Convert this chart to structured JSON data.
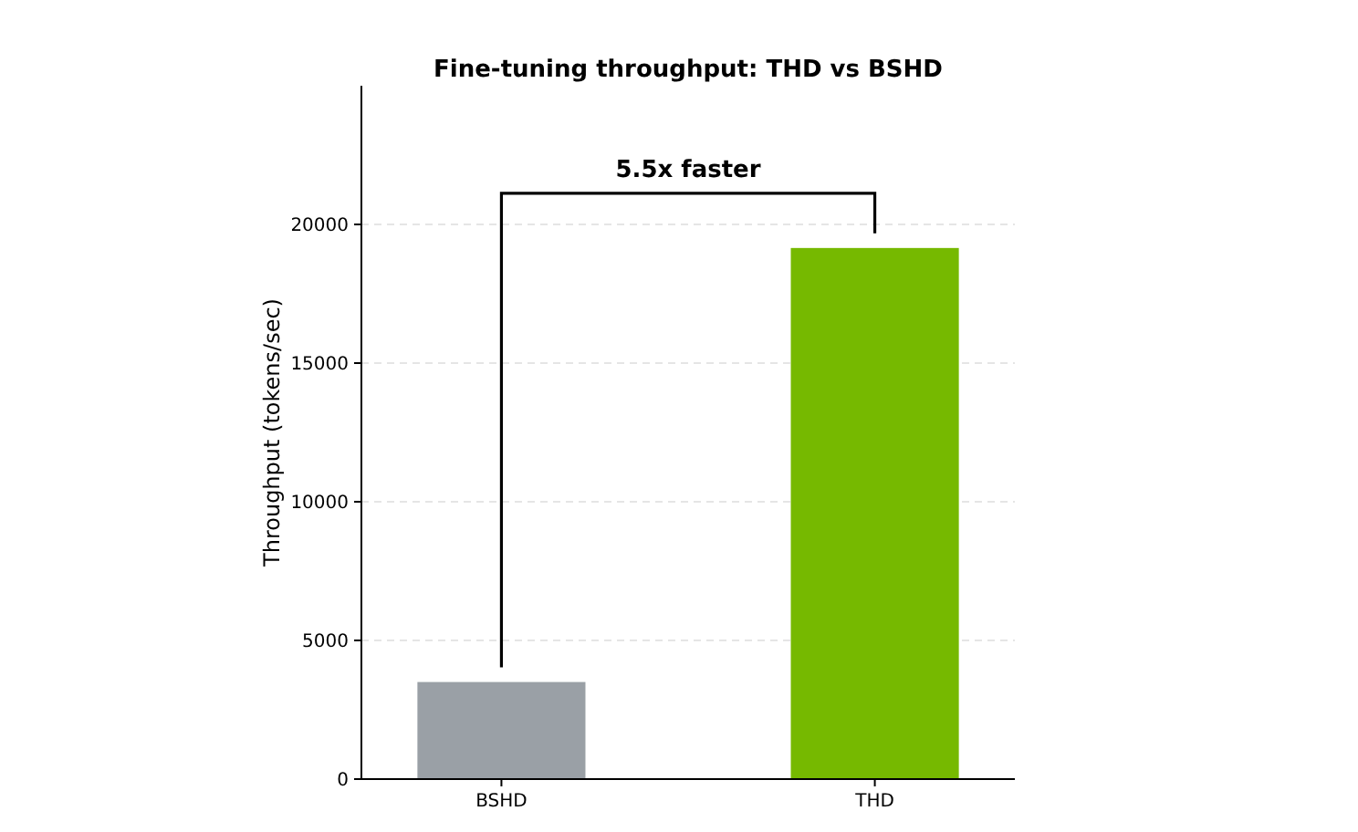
{
  "chart_data": {
    "type": "bar",
    "title": "Fine-tuning throughput: THD vs BSHD",
    "ylabel": "Throughput (tokens/sec)",
    "categories": [
      "BSHD",
      "THD"
    ],
    "values": [
      3500,
      19150
    ],
    "colors": [
      "#9aa0a6",
      "#76b900"
    ],
    "ylim": [
      0,
      25000
    ],
    "yticks": [
      0,
      5000,
      10000,
      15000,
      20000
    ],
    "grid": "y",
    "annotations": [
      "5.5x faster"
    ]
  }
}
